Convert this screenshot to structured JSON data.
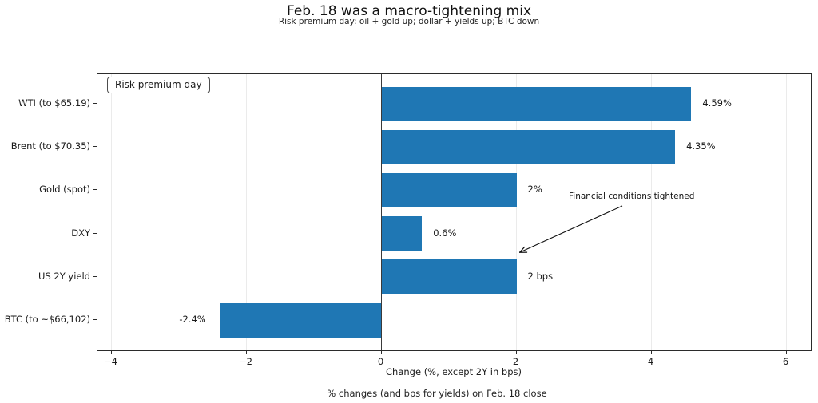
{
  "chart_data": {
    "type": "bar",
    "orientation": "horizontal",
    "title": "Feb. 18 was a macro-tightening mix",
    "subtitle": "Risk premium day: oil + gold up; dollar + yields up; BTC down",
    "xlabel": "Change (%, except 2Y in bps)",
    "caption": "% changes (and bps for yields) on Feb. 18 close",
    "legend_label": "Risk premium day",
    "legend_position": "upper left",
    "annotation": "Financial conditions tightened",
    "bar_color": "#1f77b4",
    "grid": "vertical",
    "categories": [
      "WTI (to $65.19)",
      "Brent (to $70.35)",
      "Gold (spot)",
      "DXY",
      "US 2Y yield",
      "BTC (to ~$66,102)"
    ],
    "values": [
      4.59,
      4.35,
      2,
      0.6,
      2,
      -2.4
    ],
    "value_labels": [
      "4.59%",
      "4.35%",
      "2%",
      "0.6%",
      "2 bps",
      "-2.4%"
    ],
    "xlim": [
      -4.2,
      6.37
    ],
    "xticks": [
      -4,
      -2,
      0,
      2,
      4,
      6
    ],
    "xtick_labels": [
      "−4",
      "−2",
      "0",
      "2",
      "4",
      "6"
    ]
  }
}
